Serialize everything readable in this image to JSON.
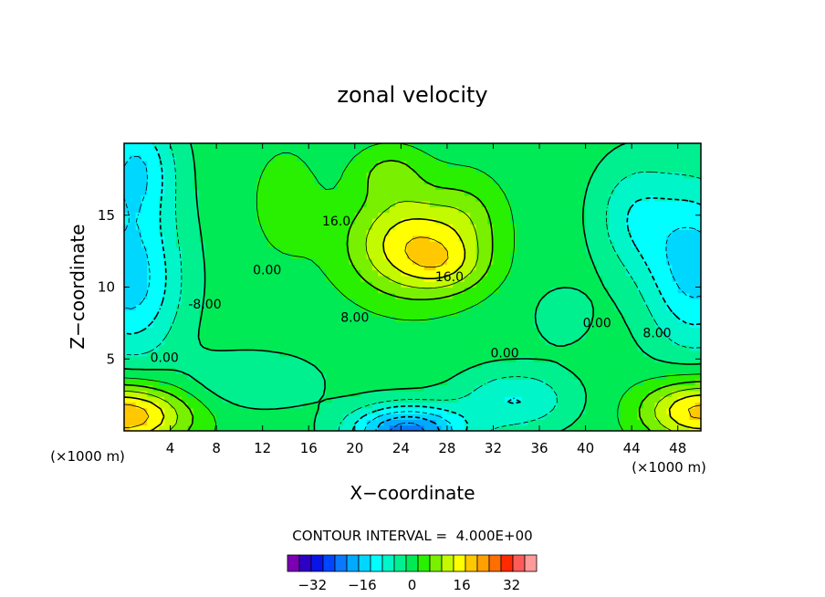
{
  "chart_data": {
    "type": "heatmap",
    "title": "zonal velocity",
    "xlabel": "X−coordinate",
    "ylabel": "Z−coordinate",
    "x_unit_left": "(×1000 m)",
    "x_unit_right": "(×1000 m)",
    "xlim": [
      0,
      50
    ],
    "ylim": [
      0,
      20
    ],
    "x_ticks": [
      "4",
      "8",
      "12",
      "16",
      "20",
      "24",
      "28",
      "32",
      "36",
      "40",
      "44",
      "48"
    ],
    "x_tick_values": [
      4,
      8,
      12,
      16,
      20,
      24,
      28,
      32,
      36,
      40,
      44,
      48
    ],
    "y_ticks": [
      "5",
      "10",
      "15"
    ],
    "y_tick_values": [
      5,
      10,
      15
    ],
    "contour_interval_text": "CONTOUR INTERVAL =  4.000E+00",
    "contour_interval": 4,
    "contour_labels": [
      {
        "text": "16.0",
        "x": 18.4,
        "y": 14.3
      },
      {
        "text": "16.0",
        "x": 28.2,
        "y": 10.4
      },
      {
        "text": "0.00",
        "x": 12.4,
        "y": 10.9
      },
      {
        "text": "-8.00",
        "x": 7.0,
        "y": 8.5
      },
      {
        "text": "8.00",
        "x": 20.0,
        "y": 7.6
      },
      {
        "text": "0.00",
        "x": 3.5,
        "y": 4.8
      },
      {
        "text": "0.00",
        "x": 33.0,
        "y": 5.1
      },
      {
        "text": "0.00",
        "x": 41.0,
        "y": 7.2
      },
      {
        "text": "8.00",
        "x": 46.2,
        "y": 6.5
      }
    ],
    "colorbar": {
      "levels": [
        -40,
        -36,
        -32,
        -28,
        -24,
        -20,
        -16,
        -12,
        -8,
        -4,
        0,
        4,
        8,
        12,
        16,
        20,
        24,
        28,
        32,
        36,
        40
      ],
      "tick_labels": [
        "−32",
        "−16",
        "0",
        "16",
        "32"
      ],
      "tick_values": [
        -32,
        -16,
        0,
        16,
        32
      ],
      "colors": [
        "#7b00b4",
        "#2d00c8",
        "#0a14e6",
        "#0046ff",
        "#0a78ff",
        "#00aaff",
        "#00d7ff",
        "#00ffff",
        "#00f5c8",
        "#00f090",
        "#00ea55",
        "#28f000",
        "#78f000",
        "#c3fa00",
        "#ffff00",
        "#ffc800",
        "#ffa000",
        "#ff6e00",
        "#ff2a00",
        "#ff5a5a",
        "#ff9a9a"
      ]
    }
  }
}
